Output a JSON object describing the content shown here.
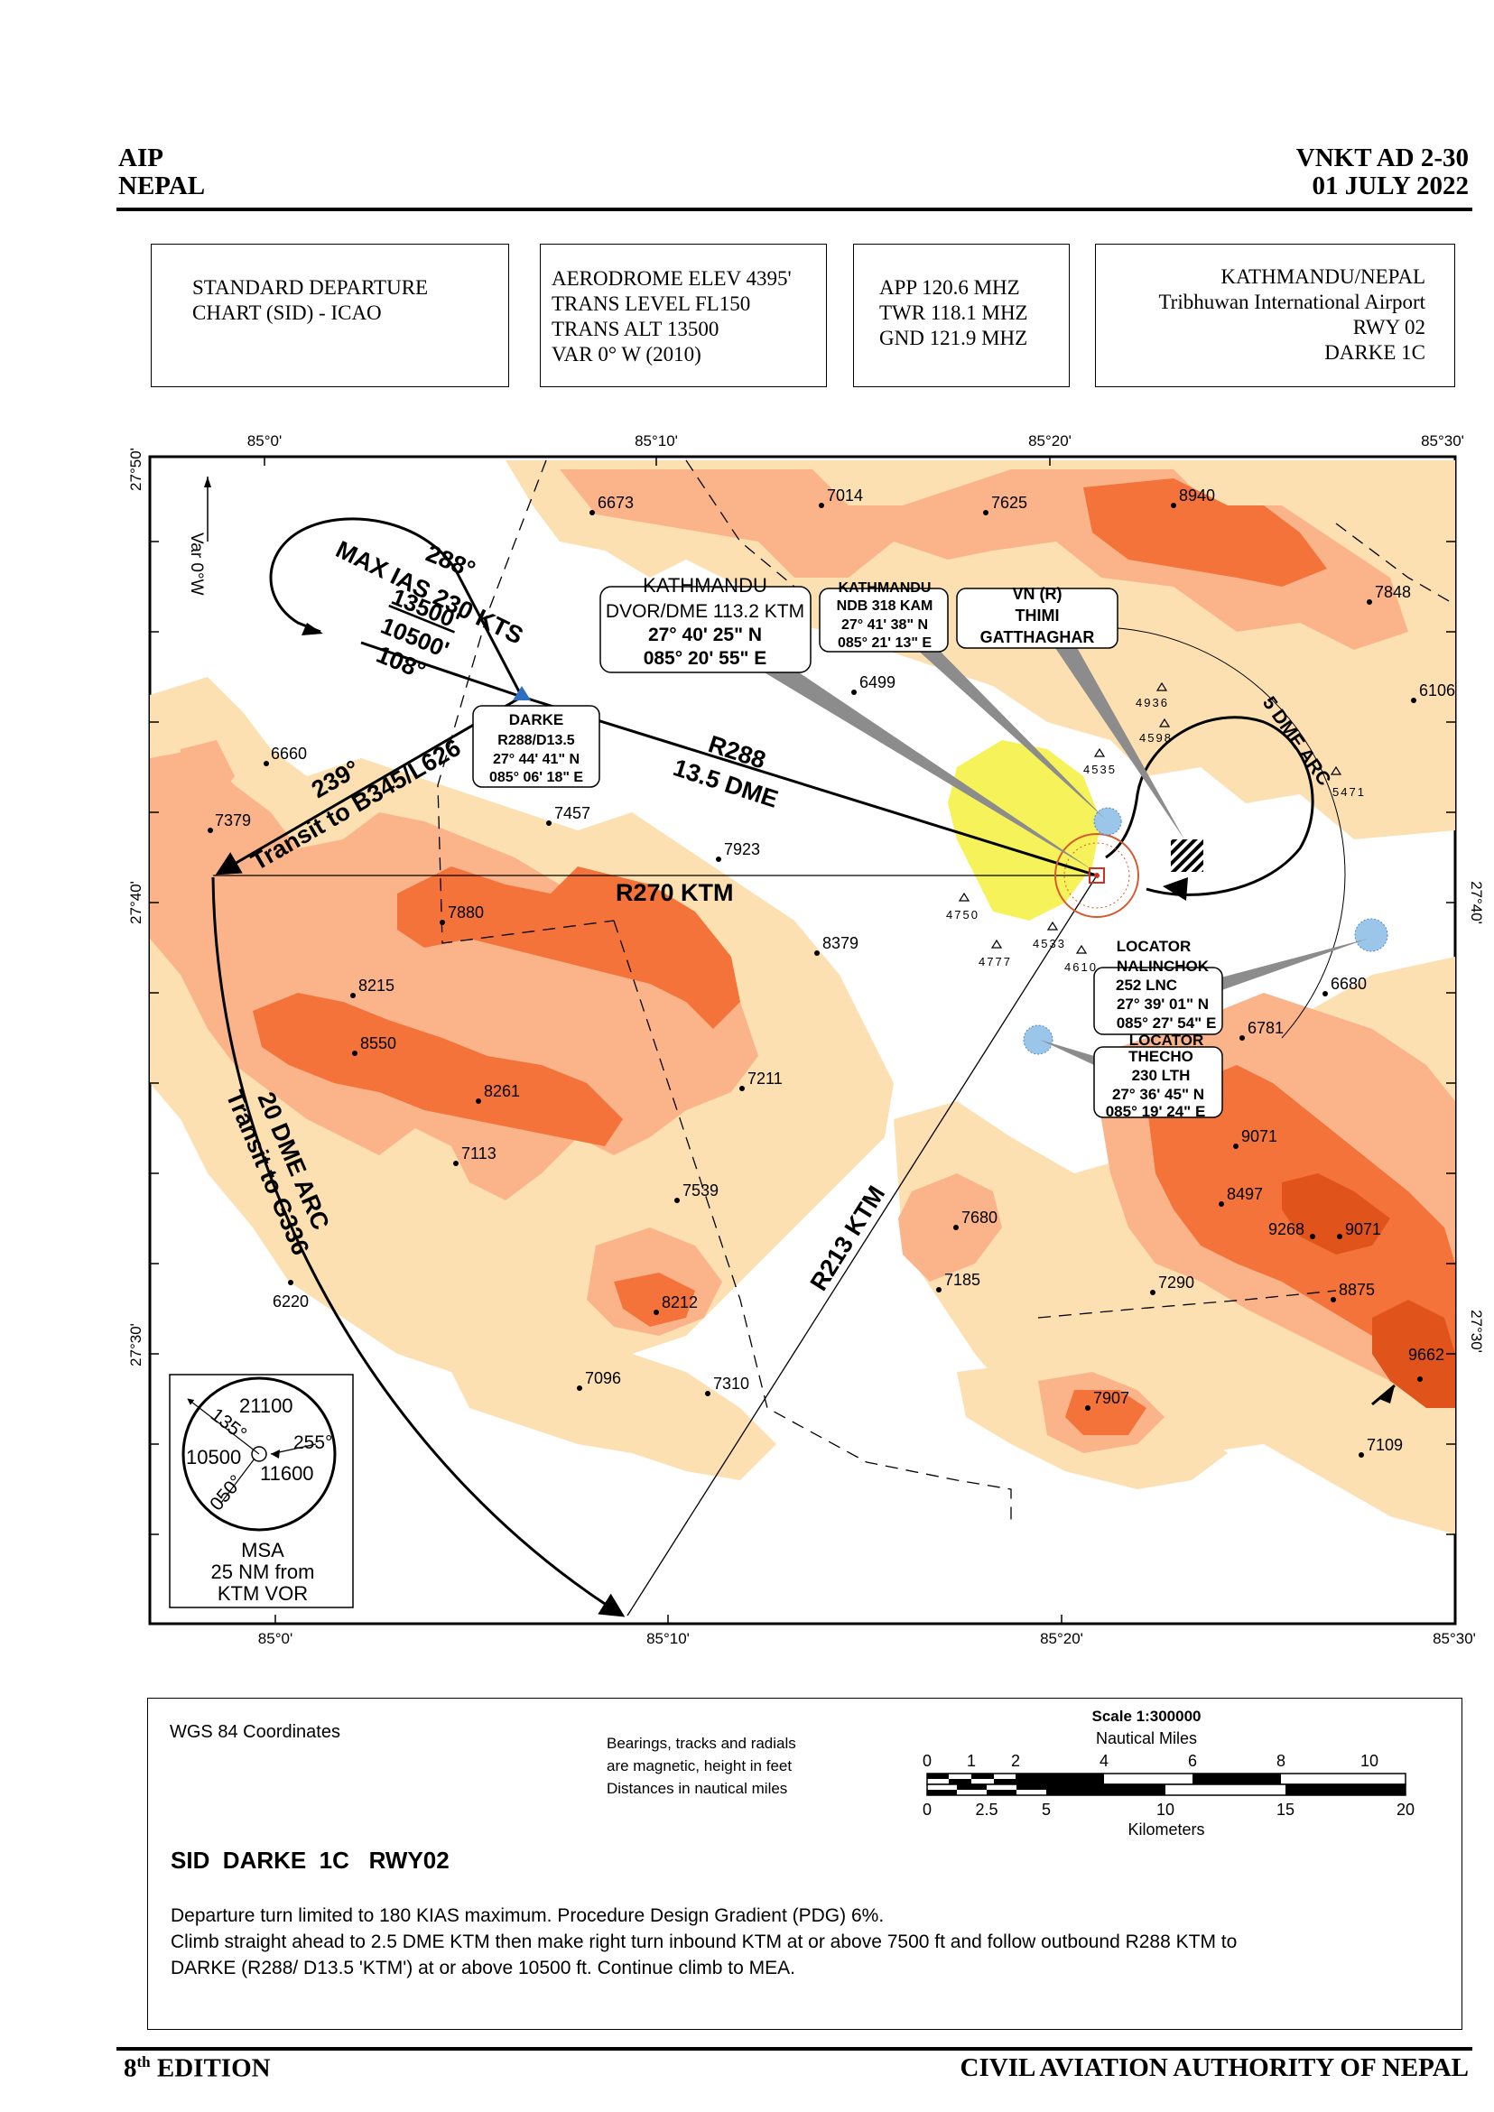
{
  "header": {
    "left_line1": "AIP",
    "left_line2": "NEPAL",
    "right_line1": "VNKT AD 2-30",
    "right_line2": "01 JULY 2022"
  },
  "infoboxes": {
    "chart_type": [
      "STANDARD DEPARTURE",
      "CHART (SID) - ICAO"
    ],
    "aerodrome": [
      "AERODROME ELEV 4395'",
      "TRANS LEVEL FL150",
      "TRANS ALT 13500",
      "VAR 0° W (2010)"
    ],
    "frequencies": [
      "APP 120.6 MHZ",
      "TWR 118.1 MHZ",
      "GND 121.9 MHZ"
    ],
    "airport": [
      "KATHMANDU/NEPAL",
      "Tribhuwan International Airport",
      "RWY 02",
      "DARKE 1C"
    ]
  },
  "map": {
    "lat_labels": [
      "27°50'",
      "27°40'",
      "27°30'"
    ],
    "lon_labels": [
      "85°0'",
      "85°10'",
      "85°20'",
      "85°30'"
    ],
    "variation": "Var 0°W",
    "spot_heights": [
      {
        "label": "6673"
      },
      {
        "label": "7014"
      },
      {
        "label": "7625"
      },
      {
        "label": "8940"
      },
      {
        "label": "7848"
      },
      {
        "label": "6106"
      },
      {
        "label": "6499"
      },
      {
        "label": "6660"
      },
      {
        "label": "7379"
      },
      {
        "label": "7457"
      },
      {
        "label": "7923"
      },
      {
        "label": "7880"
      },
      {
        "label": "8379"
      },
      {
        "label": "8215"
      },
      {
        "label": "8550"
      },
      {
        "label": "8261"
      },
      {
        "label": "7211"
      },
      {
        "label": "7113"
      },
      {
        "label": "7539"
      },
      {
        "label": "7680"
      },
      {
        "label": "7185"
      },
      {
        "label": "8212"
      },
      {
        "label": "7096"
      },
      {
        "label": "7310"
      },
      {
        "label": "6220"
      },
      {
        "label": "9071"
      },
      {
        "label": "8497"
      },
      {
        "label": "9268"
      },
      {
        "label": "9071"
      },
      {
        "label": "8875"
      },
      {
        "label": "7290"
      },
      {
        "label": "9662"
      },
      {
        "label": "7907"
      },
      {
        "label": "7109"
      },
      {
        "label": "6680"
      },
      {
        "label": "6781"
      }
    ],
    "obstacles": [
      "4936",
      "4598",
      "4535",
      "5471",
      "4750",
      "4533",
      "4777",
      "4610"
    ],
    "holding": {
      "outbound": "288°",
      "speed": "MAX IAS 230 KTS",
      "max_alt": "13500'",
      "min_alt": "10500'",
      "inbound": "108°"
    },
    "darke": [
      "DARKE",
      "R288/D13.5",
      "27° 44' 41\" N",
      "085° 06' 18\" E"
    ],
    "ktm_vor": [
      "KATHMANDU",
      "DVOR/DME 113.2 KTM",
      "27° 40' 25\" N",
      "085° 20' 55\" E"
    ],
    "ktm_ndb": [
      "KATHMANDU",
      "NDB 318 KAM",
      "27° 41' 38\" N",
      "085° 21' 13\" E"
    ],
    "thimi": [
      "VN (R)",
      "THIMI",
      "GATTHAGHAR"
    ],
    "lnc": [
      "LOCATOR",
      "NALINCHOK",
      "252 LNC",
      "27° 39' 01\" N",
      "085° 27' 54\" E"
    ],
    "lth": [
      "LOCATOR",
      "THECHO",
      "230 LTH",
      "27° 36' 45\" N",
      "085° 19' 24\" E"
    ],
    "r288": "R288",
    "r288_dist": "13.5 DME",
    "transit_b345": "239°",
    "transit_b345_text": "Transit to B345/L626",
    "r270": "R270 KTM",
    "r213": "R213 KTM",
    "dme_arc_20": "20 DME ARC",
    "transit_g336": "Transit to G336",
    "dme_arc_5": "5 DME ARC",
    "msa": {
      "sector_n": "21100",
      "sector_w": "10500",
      "sector_s": "11600",
      "bearing_135": "135°",
      "bearing_255": "255°",
      "bearing_050": "050°",
      "title": "MSA",
      "line2": "25 NM from",
      "line3": "KTM VOR"
    }
  },
  "legend": {
    "coords": "WGS 84 Coordinates",
    "note1": "Bearings, tracks and radials",
    "note2": "are magnetic, height in feet",
    "note3": "Distances in nautical miles",
    "scale_title": "Scale  1:300000",
    "nm_label": "Nautical Miles",
    "nm_ticks": [
      "0",
      "1",
      "2",
      "4",
      "6",
      "8",
      "10"
    ],
    "km_ticks": [
      "0",
      "2.5",
      "5",
      "10",
      "15",
      "20"
    ],
    "km_label": "Kilometers",
    "sid_title": "SID  DARKE  1C   RWY02",
    "desc1": "Departure turn limited to 180 KIAS maximum. Procedure Design Gradient (PDG) 6%.",
    "desc2": "Climb straight ahead to 2.5 DME KTM then make right turn inbound KTM at or above 7500 ft and follow outbound R288 KTM to",
    "desc3": "DARKE (R288/ D13.5 'KTM') at or above 10500 ft. Continue climb to MEA."
  },
  "footer": {
    "edition_num": "8",
    "edition_sup": "th",
    "edition_text": " EDITION",
    "authority": "CIVIL AVIATION AUTHORITY OF NEPAL"
  },
  "colors": {
    "terrain_light": "#fde0b2",
    "terrain_mid": "#fbb48a",
    "terrain_high": "#f4733a",
    "terrain_peak": "#e0531a",
    "urban": "#f6f25a"
  }
}
